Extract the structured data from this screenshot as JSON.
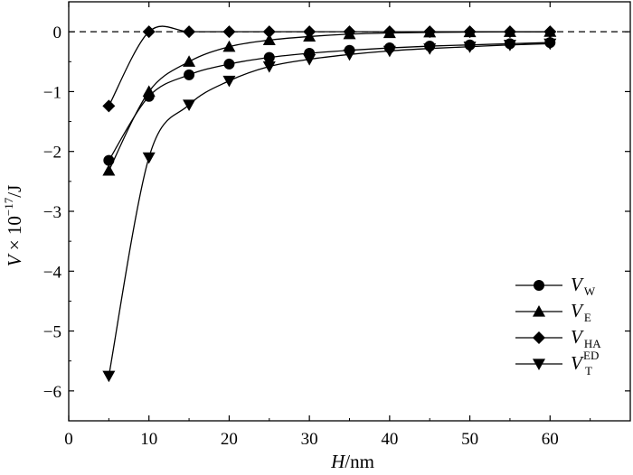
{
  "chart_data": {
    "type": "line",
    "xlabel": {
      "var": "H",
      "unit": "/nm"
    },
    "ylabel": {
      "var": "V",
      "mid": " × 10",
      "exp": "−17",
      "unit": "/J"
    },
    "xlim": [
      0,
      70
    ],
    "ylim": [
      -6.5,
      0.5
    ],
    "xticks": [
      0,
      10,
      20,
      30,
      40,
      50,
      60
    ],
    "yticks": [
      0,
      -1,
      -2,
      -3,
      -4,
      -5,
      -6
    ],
    "xtick_labels": [
      "0",
      "10",
      "20",
      "30",
      "40",
      "50",
      "60"
    ],
    "ytick_labels": [
      "0",
      "−1",
      "−2",
      "−3",
      "−4",
      "−5",
      "−6"
    ],
    "reference_line": {
      "y": 0,
      "style": "dashed"
    },
    "grid": false,
    "legend_position": "bottom-right",
    "x": [
      5,
      10,
      15,
      20,
      25,
      30,
      35,
      40,
      45,
      50,
      55,
      60
    ],
    "series": [
      {
        "label": "V",
        "sub": "W",
        "sup": "",
        "marker": "circle",
        "values": [
          -2.15,
          -1.08,
          -0.72,
          -0.54,
          -0.43,
          -0.36,
          -0.31,
          -0.27,
          -0.24,
          -0.22,
          -0.2,
          -0.18
        ]
      },
      {
        "label": "V",
        "sub": "E",
        "sup": "",
        "marker": "triangle-up",
        "values": [
          -2.32,
          -1.0,
          -0.5,
          -0.25,
          -0.14,
          -0.08,
          -0.04,
          -0.02,
          -0.01,
          -0.005,
          -0.002,
          -0.001
        ]
      },
      {
        "label": "V",
        "sub": "HA",
        "sup": "",
        "marker": "diamond",
        "values": [
          -1.24,
          0.0,
          0.0,
          0.0,
          0.0,
          0.0,
          0.0,
          0.0,
          0.0,
          0.0,
          0.0,
          0.0
        ]
      },
      {
        "label": "V",
        "sub": "T",
        "sup": "ED",
        "marker": "triangle-down",
        "values": [
          -5.75,
          -2.1,
          -1.22,
          -0.82,
          -0.58,
          -0.46,
          -0.38,
          -0.32,
          -0.28,
          -0.25,
          -0.22,
          -0.2
        ]
      }
    ]
  }
}
